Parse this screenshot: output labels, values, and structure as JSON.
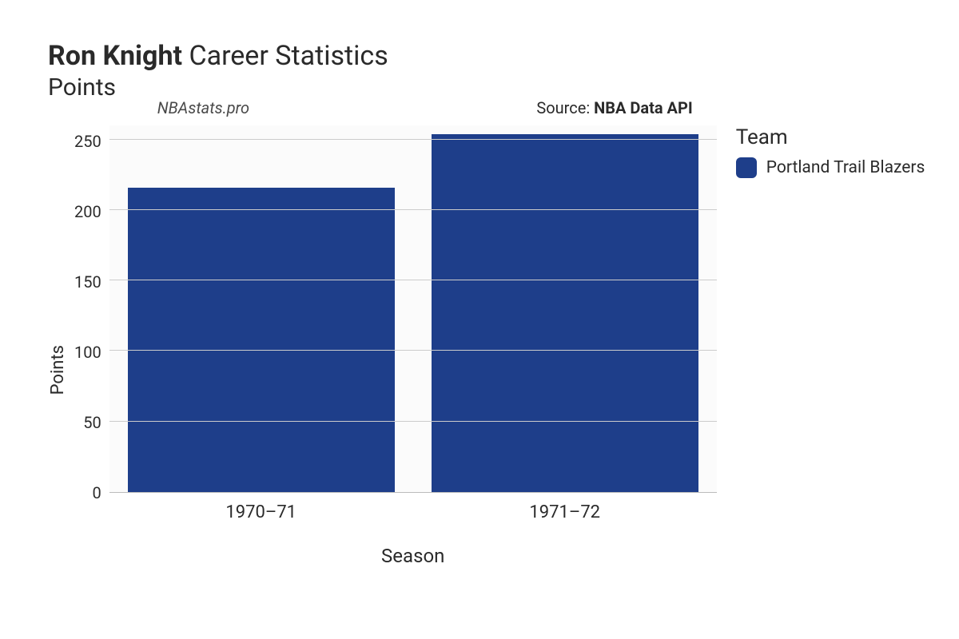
{
  "title": {
    "name_bold": "Ron Knight",
    "rest": " Career Statistics",
    "subtitle": "Points"
  },
  "annotations": {
    "left": "NBAstats.pro",
    "right_prefix": "Source: ",
    "right_bold": "NBA Data API"
  },
  "chart": {
    "type": "bar",
    "background_color": "#fbfbfb",
    "grid_color": "#cccccc",
    "bar_width_pct": 88,
    "x": {
      "label": "Season",
      "categories": [
        "1970–71",
        "1971–72"
      ],
      "label_fontsize": 24,
      "tick_fontsize": 22
    },
    "y": {
      "label": "Points",
      "min": 0,
      "max": 260,
      "ticks": [
        0,
        50,
        100,
        150,
        200,
        250
      ],
      "label_fontsize": 22,
      "tick_fontsize": 20
    },
    "series": [
      {
        "team": "Portland Trail Blazers",
        "color": "#1e3e8a",
        "values": [
          216,
          254
        ]
      }
    ]
  },
  "legend": {
    "title": "Team",
    "items": [
      {
        "label": "Portland Trail Blazers",
        "color": "#1e3e8a"
      }
    ]
  }
}
